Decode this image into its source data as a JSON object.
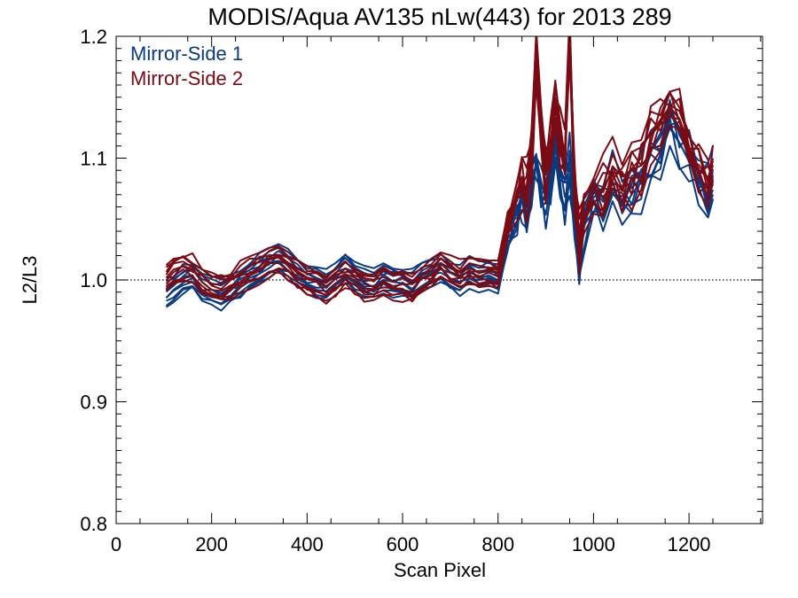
{
  "chart_data": {
    "type": "line",
    "title": "MODIS/Aqua AV135 nLw(443) for 2013 289",
    "xlabel": "Scan Pixel",
    "ylabel": "L2/L3",
    "xlim": [
      0,
      1354
    ],
    "ylim": [
      0.8,
      1.2
    ],
    "xticks": [
      0,
      200,
      400,
      600,
      800,
      1000,
      1200
    ],
    "yticks": [
      0.8,
      0.9,
      1.0,
      1.1,
      1.2
    ],
    "x_tick_labels": [
      "0",
      "200",
      "400",
      "600",
      "800",
      "1000",
      "1200"
    ],
    "y_tick_labels": [
      "0.8",
      "0.9",
      "1.0",
      "1.1",
      "1.2"
    ],
    "reference_line": {
      "y": 1.0,
      "style": "dotted"
    },
    "legend_position": "top-left",
    "grid": false,
    "colors": {
      "mirror_side_1": "#0b3a7e",
      "mirror_side_2": "#7a0a14"
    },
    "x": [
      105,
      120,
      140,
      160,
      180,
      200,
      220,
      240,
      260,
      280,
      300,
      320,
      340,
      360,
      380,
      400,
      420,
      440,
      460,
      480,
      500,
      520,
      540,
      560,
      580,
      600,
      620,
      640,
      660,
      680,
      700,
      720,
      740,
      760,
      780,
      800,
      820,
      840,
      850,
      860,
      870,
      880,
      890,
      900,
      910,
      920,
      930,
      940,
      950,
      960,
      970,
      980,
      1000,
      1020,
      1040,
      1060,
      1080,
      1100,
      1120,
      1140,
      1160,
      1180,
      1200,
      1220,
      1240,
      1250
    ],
    "series": [
      {
        "name": "Mirror-Side 1",
        "members": 10,
        "values": [
          0.988,
          0.994,
          0.999,
          1.003,
          0.993,
          0.99,
          0.988,
          0.992,
          0.997,
          1.003,
          1.008,
          1.014,
          1.017,
          1.013,
          1.007,
          1.001,
          0.998,
          0.995,
          1.002,
          1.01,
          1.004,
          0.998,
          0.996,
          1.001,
          0.998,
          0.999,
          0.995,
          1.002,
          1.006,
          1.01,
          1.004,
          1.0,
          1.006,
          1.002,
          1.004,
          1.0,
          1.035,
          1.055,
          1.07,
          1.06,
          1.08,
          1.095,
          1.075,
          1.06,
          1.08,
          1.11,
          1.085,
          1.07,
          1.095,
          1.06,
          1.01,
          1.04,
          1.07,
          1.06,
          1.08,
          1.06,
          1.07,
          1.08,
          1.1,
          1.11,
          1.13,
          1.115,
          1.1,
          1.09,
          1.07,
          1.085
        ]
      },
      {
        "name": "Mirror-Side 2",
        "members": 10,
        "values": [
          1.0,
          1.007,
          1.01,
          1.008,
          1.0,
          0.995,
          0.993,
          0.996,
          1.002,
          1.006,
          1.01,
          1.015,
          1.017,
          1.012,
          1.005,
          1.0,
          0.997,
          0.993,
          0.998,
          1.004,
          1.0,
          0.995,
          0.994,
          0.999,
          0.996,
          0.996,
          0.993,
          1.0,
          1.004,
          1.014,
          1.007,
          1.003,
          1.008,
          1.004,
          1.006,
          1.003,
          1.045,
          1.07,
          1.08,
          1.075,
          1.1,
          1.18,
          1.12,
          1.09,
          1.11,
          1.15,
          1.115,
          1.1,
          1.2,
          1.08,
          1.03,
          1.06,
          1.08,
          1.075,
          1.09,
          1.075,
          1.085,
          1.095,
          1.12,
          1.13,
          1.15,
          1.13,
          1.11,
          1.095,
          1.08,
          1.09
        ]
      }
    ]
  }
}
